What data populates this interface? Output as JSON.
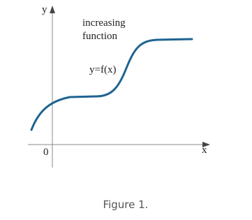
{
  "axes": {
    "y_label": "y",
    "x_label": "x",
    "origin": "0"
  },
  "annotations": {
    "note": [
      "increasing",
      "function"
    ],
    "curve_label": "y=f(x)"
  },
  "caption": "Figure 1."
}
